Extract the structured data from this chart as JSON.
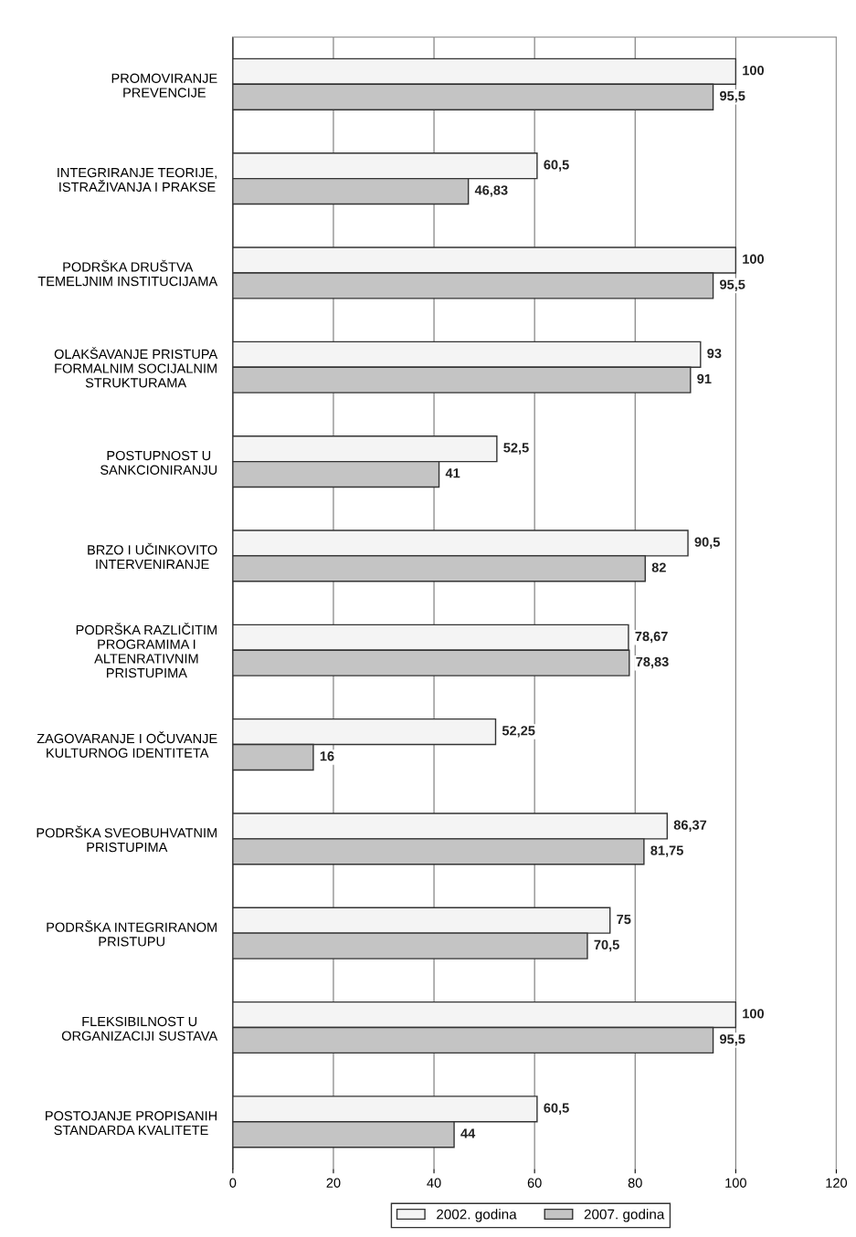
{
  "chart_data": {
    "type": "bar",
    "orientation": "horizontal",
    "categories": [
      "PROMOVIRANJE\nPREVENCIJE",
      "INTEGRIRANJE TEORIJE,\nISTRAŽIVANJA I PRAKSE",
      "PODRŠKA DRUŠTVA\nTEMELJNIM INSTITUCIJAMA",
      "OLAKŠAVANJE PRISTUPA\nFORMALNIM SOCIJALNIM\nSTRUKTURAMA",
      "POSTUPNOST U\nSANKCIONIRANJU",
      "BRZO I UČINKOVITO\nINTERVENIRANJE",
      "PODRŠKA RAZLIČITIM\nPROGRAMIMA I\nALTENRATIVNIM\nPRISTUPIMA",
      "ZAGOVARANJE I OČUVANJE\nKULTURNOG IDENTITETA",
      "PODRŠKA SVEOBUHVATNIM\nPRISTUPIMA",
      "PODRŠKA INTEGRIRANOM\nPRISTUPU",
      "FLEKSIBILNOST U\nORGANIZACIJI SUSTAVA",
      "POSTOJANJE PROPISANIH\nSTANDARDA KVALITETE"
    ],
    "series": [
      {
        "name": "2002. godina",
        "color": "#f4f4f4",
        "values": [
          100,
          60.5,
          100,
          93,
          52.5,
          90.5,
          78.67,
          52.25,
          86.37,
          75,
          100,
          60.5
        ],
        "value_labels": [
          "100",
          "60,5",
          "100",
          "93",
          "52,5",
          "90,5",
          "78,67",
          "52,25",
          "86,37",
          "75",
          "100",
          "60,5"
        ]
      },
      {
        "name": "2007. godina",
        "color": "#c4c4c4",
        "values": [
          95.5,
          46.83,
          95.5,
          91,
          41,
          82,
          78.83,
          16,
          81.75,
          70.5,
          95.5,
          44
        ],
        "value_labels": [
          "95,5",
          "46,83",
          "95,5",
          "91",
          "41",
          "82",
          "78,83",
          "16",
          "81,75",
          "70,5",
          "95,5",
          "44"
        ]
      }
    ],
    "xlim": [
      0,
      120
    ],
    "xticks": [
      0,
      20,
      40,
      60,
      80,
      100,
      120
    ],
    "grid": "x",
    "legend": "bottom"
  }
}
